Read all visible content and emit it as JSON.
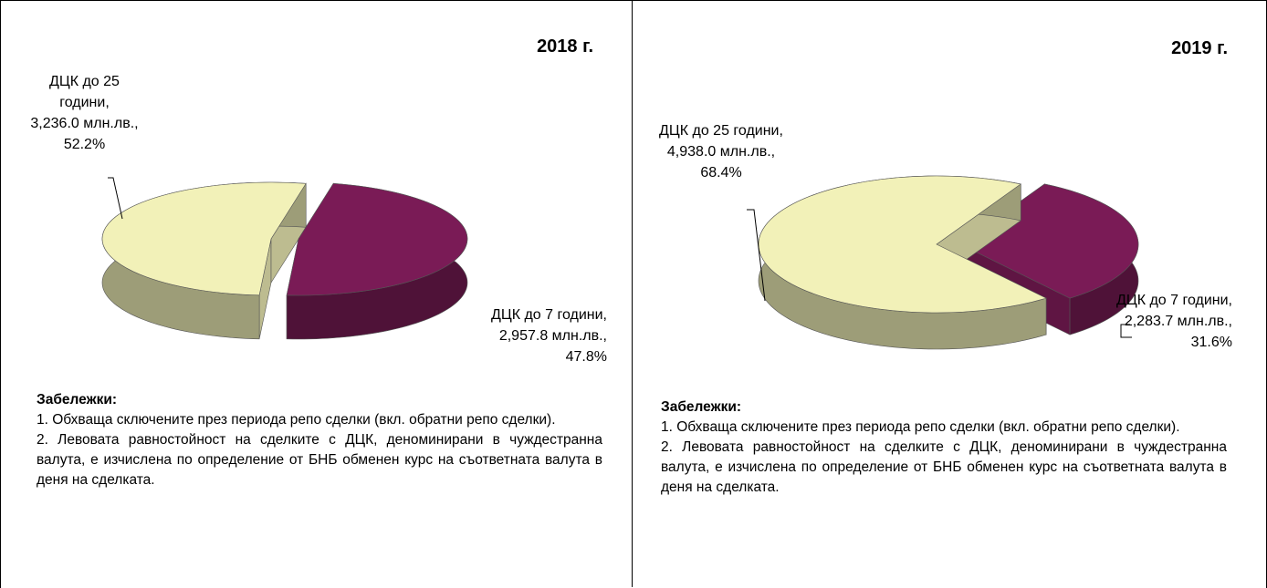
{
  "chart_data": [
    {
      "type": "pie",
      "title": "2018 г.",
      "categories": [
        "ДЦК до 25 години,",
        "ДЦК до 7 години,"
      ],
      "values": [
        3236.0,
        2957.8
      ],
      "value_labels": [
        "3,236.0 млн.лв.,",
        "2,957.8 млн.лв.,"
      ],
      "percents": [
        52.2,
        47.8
      ],
      "percent_labels": [
        "52.2%",
        "47.8%"
      ],
      "colors": [
        "#f2f1b8",
        "#7a1b56"
      ],
      "notes_title": "Забележки:",
      "notes": [
        "1.  Обхваща сключените през периода репо сделки (вкл. обратни репо сделки).",
        "2.  Левовата равностойност на сделките с ДЦК, деноминирани в чуждестранна валута, е изчислена по определение от БНБ обменен курс на съответната валута в деня на сделката."
      ]
    },
    {
      "type": "pie",
      "title": "2019 г.",
      "categories": [
        "ДЦК до 25 години,",
        "ДЦК до 7 години,"
      ],
      "values": [
        4938.0,
        2283.7
      ],
      "value_labels": [
        "4,938.0 млн.лв.,",
        "2,283.7 млн.лв.,"
      ],
      "percents": [
        68.4,
        31.6
      ],
      "percent_labels": [
        "68.4%",
        "31.6%"
      ],
      "colors": [
        "#f2f1b8",
        "#7a1b56"
      ],
      "notes_title": "Забележки:",
      "notes": [
        "1.  Обхваща сключените през периода репо сделки (вкл. обратни репо сделки).",
        "2.  Левовата равностойност на сделките с ДЦК, деноминирани в чуждестранна валута, е изчислена по определение от БНБ обменен курс на съответната валута в деня на сделката."
      ]
    }
  ]
}
